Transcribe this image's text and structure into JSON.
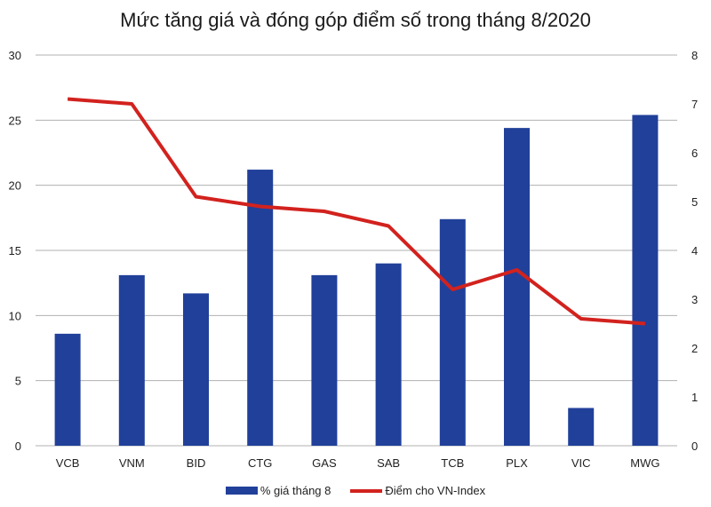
{
  "chart_data": {
    "type": "bar+line",
    "title": "Mức tăng giá và đóng góp điểm số trong tháng 8/2020",
    "categories": [
      "VCB",
      "VNM",
      "BID",
      "CTG",
      "GAS",
      "SAB",
      "TCB",
      "PLX",
      "VIC",
      "MWG"
    ],
    "series": [
      {
        "name": "% giá tháng 8",
        "type": "bar",
        "axis": "left",
        "color": "#21409a",
        "values": [
          8.6,
          13.1,
          11.7,
          21.2,
          13.1,
          14.0,
          17.4,
          24.4,
          2.9,
          25.4
        ]
      },
      {
        "name": "Điểm cho VN-Index",
        "type": "line",
        "axis": "right",
        "color": "#d2221e",
        "values": [
          7.1,
          7.0,
          5.1,
          4.9,
          4.8,
          4.5,
          3.2,
          3.6,
          2.6,
          2.5
        ]
      }
    ],
    "left_axis": {
      "min": 0,
      "max": 30,
      "ticks": [
        0,
        5,
        10,
        15,
        20,
        25,
        30
      ]
    },
    "right_axis": {
      "min": 0,
      "max": 8,
      "ticks": [
        0,
        1,
        2,
        3,
        4,
        5,
        6,
        7,
        8
      ]
    },
    "xlabel": "",
    "ylabel": "",
    "grid": true,
    "legend_position": "bottom"
  }
}
